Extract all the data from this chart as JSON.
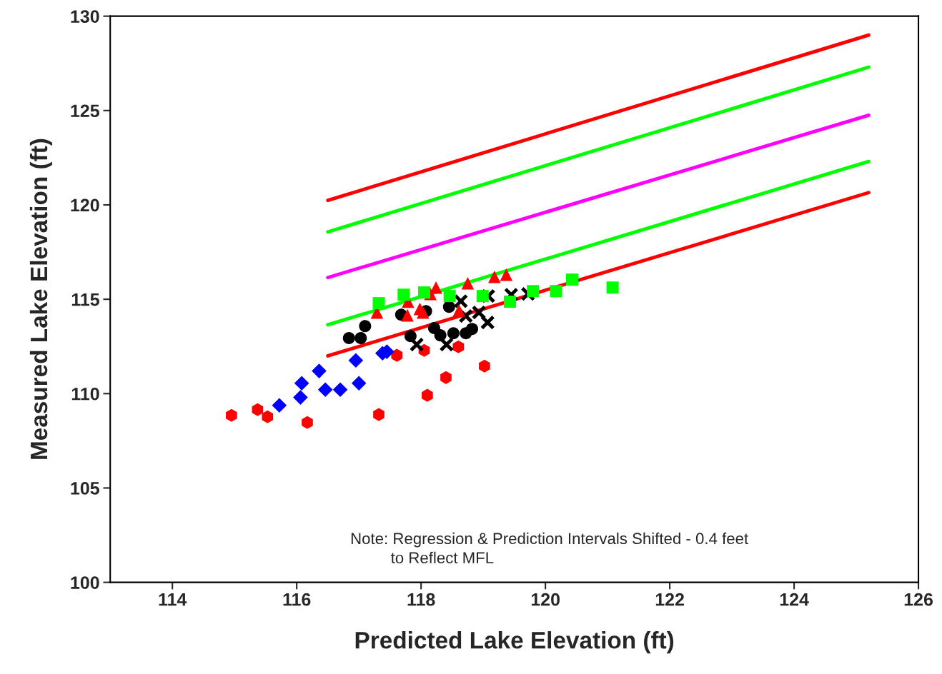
{
  "chart_data": {
    "type": "scatter",
    "xlabel": "Predicted Lake Elevation (ft)",
    "ylabel": "Measured Lake Elevation (ft)",
    "xlim": [
      113,
      126
    ],
    "xticks": [
      114,
      116,
      118,
      120,
      122,
      124,
      126
    ],
    "ylim": [
      100,
      130
    ],
    "yticks": [
      100,
      105,
      110,
      115,
      120,
      125,
      130
    ],
    "grid": false,
    "legend": false,
    "annotations": [
      "Note: Regression & Prediction Intervals Shifted - 0.4 feet",
      "to Reflect MFL"
    ],
    "series": [
      {
        "type": "line",
        "color": "#ff0000",
        "marker": "none",
        "x": [
          116.5,
          125.2
        ],
        "values": [
          120.24,
          129.0
        ]
      },
      {
        "type": "line",
        "color": "#00ff00",
        "marker": "none",
        "x": [
          116.5,
          125.2
        ],
        "values": [
          118.57,
          127.3
        ]
      },
      {
        "type": "line",
        "color": "#ff00ff",
        "marker": "none",
        "x": [
          116.5,
          125.2
        ],
        "values": [
          116.15,
          124.75
        ]
      },
      {
        "type": "line",
        "color": "#00ff00",
        "marker": "none",
        "x": [
          116.5,
          125.2
        ],
        "values": [
          113.65,
          122.3
        ]
      },
      {
        "type": "line",
        "color": "#ff0000",
        "marker": "none",
        "x": [
          116.5,
          125.2
        ],
        "values": [
          112.0,
          120.65
        ]
      },
      {
        "color": "#ff0000",
        "x": [
          114.95,
          115.37,
          115.53,
          116.17,
          117.32,
          117.61,
          118.05,
          118.1,
          118.4,
          118.6,
          119.02
        ],
        "values": [
          108.85,
          109.15,
          108.77,
          108.47,
          108.89,
          112.03,
          112.29,
          109.91,
          110.85,
          112.48,
          111.46
        ]
      },
      {
        "color": "#0000ff",
        "marker": "diamond",
        "x": [
          115.72,
          116.06,
          116.08,
          116.36,
          116.46,
          116.7,
          116.95,
          117.0,
          117.38,
          117.45
        ],
        "values": [
          109.38,
          109.8,
          110.55,
          111.2,
          110.21,
          110.21,
          111.76,
          110.55,
          112.14,
          112.22
        ]
      },
      {
        "color": "#000000",
        "marker": "circle",
        "x": [
          116.84,
          117.03,
          117.1,
          117.68,
          117.83,
          118.08,
          118.21,
          118.31,
          118.45,
          118.52,
          118.72,
          118.82
        ],
        "values": [
          112.94,
          112.94,
          113.58,
          114.18,
          113.05,
          114.37,
          113.47,
          113.09,
          114.6,
          113.2,
          113.2,
          113.43
        ]
      },
      {
        "color": "#000000",
        "marker": "cross",
        "x": [
          117.93,
          118.41,
          118.64,
          118.72,
          118.93,
          119.07,
          119.08,
          119.45,
          119.72
        ],
        "values": [
          112.6,
          112.6,
          114.9,
          114.11,
          114.3,
          113.77,
          115.17,
          115.24,
          115.28
        ]
      },
      {
        "color": "#ff0000",
        "marker": "triangle",
        "x": [
          117.29,
          117.78,
          117.79,
          117.98,
          118.03,
          118.15,
          118.24,
          118.61,
          118.75,
          119.18,
          119.37
        ],
        "values": [
          114.3,
          114.15,
          114.87,
          114.49,
          114.3,
          115.28,
          115.62,
          114.41,
          115.85,
          116.19,
          116.3
        ]
      },
      {
        "color": "#00ff00",
        "marker": "square",
        "x": [
          117.32,
          117.72,
          118.05,
          118.46,
          118.99,
          119.43,
          119.8,
          120.17,
          120.43,
          121.08
        ],
        "values": [
          114.79,
          115.24,
          115.36,
          115.17,
          115.17,
          114.87,
          115.43,
          115.43,
          116.04,
          115.62
        ]
      }
    ]
  }
}
